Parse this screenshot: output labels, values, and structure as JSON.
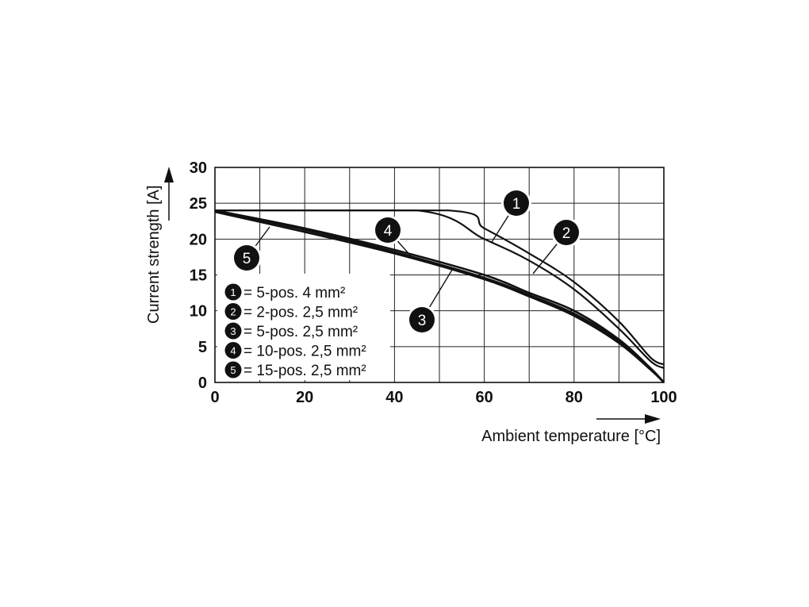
{
  "chart_data": {
    "type": "line",
    "title": "",
    "xlabel": "Ambient temperature [°C]",
    "ylabel": "Current strength [A]",
    "xlim": [
      0,
      100
    ],
    "ylim": [
      0,
      30
    ],
    "x_ticks": [
      0,
      20,
      40,
      60,
      80,
      100
    ],
    "y_ticks": [
      0,
      5,
      10,
      15,
      20,
      25,
      30
    ],
    "grid": true,
    "legend_position": "bottom-left",
    "series": [
      {
        "name": "5-pos. 4 mm²",
        "badge": "1",
        "points": [
          [
            0,
            24
          ],
          [
            52,
            24
          ],
          [
            60,
            21.5
          ],
          [
            70,
            18
          ],
          [
            80,
            14
          ],
          [
            90,
            8.5
          ],
          [
            97,
            3.5
          ],
          [
            100,
            2.5
          ]
        ]
      },
      {
        "name": "2-pos. 2,5 mm²",
        "badge": "2",
        "points": [
          [
            0,
            24
          ],
          [
            45,
            24
          ],
          [
            60,
            20
          ],
          [
            70,
            17
          ],
          [
            80,
            13
          ],
          [
            90,
            7.5
          ],
          [
            97,
            3
          ],
          [
            100,
            2
          ]
        ]
      },
      {
        "name": "5-pos. 2,5 mm²",
        "badge": "3",
        "points": [
          [
            0,
            24
          ],
          [
            20,
            21.5
          ],
          [
            40,
            18.5
          ],
          [
            60,
            15
          ],
          [
            70,
            12.5
          ],
          [
            80,
            10
          ],
          [
            90,
            6
          ],
          [
            97,
            2
          ],
          [
            100,
            0
          ]
        ]
      },
      {
        "name": "10-pos. 2,5 mm²",
        "badge": "4",
        "points": [
          [
            0,
            24
          ],
          [
            20,
            21.3
          ],
          [
            40,
            18.2
          ],
          [
            60,
            14.6
          ],
          [
            70,
            12.2
          ],
          [
            80,
            9.6
          ],
          [
            90,
            5.8
          ],
          [
            97,
            2
          ],
          [
            100,
            0
          ]
        ]
      },
      {
        "name": "15-pos. 2,5 mm²",
        "badge": "5",
        "points": [
          [
            0,
            23.8
          ],
          [
            20,
            21
          ],
          [
            40,
            18
          ],
          [
            60,
            14.4
          ],
          [
            70,
            12
          ],
          [
            80,
            9.3
          ],
          [
            90,
            5.5
          ],
          [
            97,
            1.8
          ],
          [
            100,
            0
          ]
        ]
      }
    ]
  },
  "legend": [
    {
      "badge": "1",
      "label": "= 5-pos.   4 mm²"
    },
    {
      "badge": "2",
      "label": "= 2-pos.  2,5 mm²"
    },
    {
      "badge": "3",
      "label": "= 5-pos.  2,5 mm²"
    },
    {
      "badge": "4",
      "label": "= 10-pos. 2,5 mm²"
    },
    {
      "badge": "5",
      "label": "= 15-pos. 2,5 mm²"
    }
  ],
  "callouts": [
    "1",
    "2",
    "3",
    "4",
    "5"
  ]
}
